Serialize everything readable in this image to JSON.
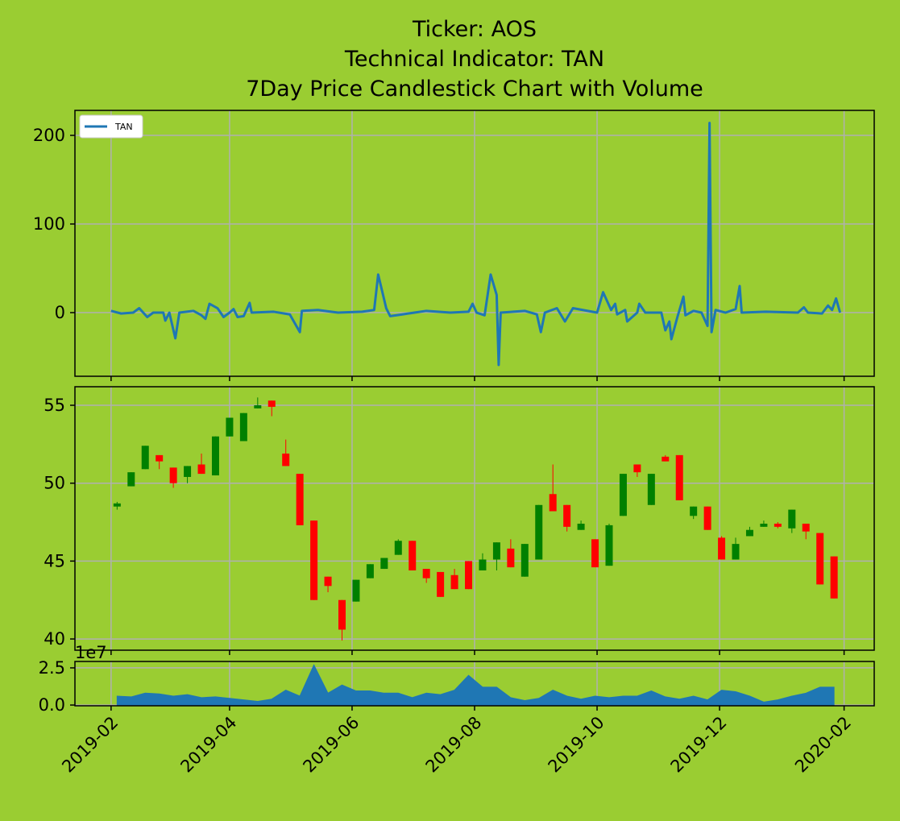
{
  "chart_data": [
    {
      "type": "line",
      "title": [
        "Ticker: AOS",
        "Technical Indicator: TAN",
        "7Day Price Candlestick Chart with Volume"
      ],
      "x": [
        "2019-02-01",
        "2019-02-06",
        "2019-02-12",
        "2019-02-15",
        "2019-02-19",
        "2019-02-22",
        "2019-02-27",
        "2019-02-28",
        "2019-03-02",
        "2019-03-05",
        "2019-03-07",
        "2019-03-14",
        "2019-03-18",
        "2019-03-20",
        "2019-03-22",
        "2019-03-26",
        "2019-03-29",
        "2019-04-01",
        "2019-04-03",
        "2019-04-05",
        "2019-04-08",
        "2019-04-11",
        "2019-04-12",
        "2019-04-23",
        "2019-05-01",
        "2019-05-06",
        "2019-05-07",
        "2019-05-15",
        "2019-05-25",
        "2019-06-06",
        "2019-06-12",
        "2019-06-14",
        "2019-06-18",
        "2019-06-20",
        "2019-06-26",
        "2019-07-08",
        "2019-07-20",
        "2019-07-29",
        "2019-07-31",
        "2019-08-02",
        "2019-08-06",
        "2019-08-09",
        "2019-08-12",
        "2019-08-13",
        "2019-08-14",
        "2019-08-26",
        "2019-09-01",
        "2019-09-03",
        "2019-09-05",
        "2019-09-11",
        "2019-09-15",
        "2019-09-19",
        "2019-10-01",
        "2019-10-04",
        "2019-10-08",
        "2019-10-10",
        "2019-10-11",
        "2019-10-15",
        "2019-10-16",
        "2019-10-21",
        "2019-10-22",
        "2019-10-25",
        "2019-11-02",
        "2019-11-04",
        "2019-11-06",
        "2019-11-07",
        "2019-11-10",
        "2019-11-13",
        "2019-11-14",
        "2019-11-18",
        "2019-11-22",
        "2019-11-25",
        "2019-11-26",
        "2019-11-27",
        "2019-11-29",
        "2019-12-04",
        "2019-12-09",
        "2019-12-11",
        "2019-12-12",
        "2019-12-24",
        "2020-01-09",
        "2020-01-12",
        "2020-01-14",
        "2020-01-21",
        "2020-01-24",
        "2020-01-26",
        "2020-01-28",
        "2020-01-30"
      ],
      "series": [
        {
          "name": "TAN",
          "color": "#1f77b4",
          "values": [
            2,
            -1,
            0,
            5,
            -5,
            0,
            0,
            -9,
            0,
            -29,
            0,
            2,
            -3,
            -7,
            10,
            5,
            -5,
            0,
            4,
            -5,
            -4,
            11,
            0,
            1,
            -2,
            -22,
            2,
            3,
            0,
            1,
            3,
            43,
            5,
            -4,
            -2,
            2,
            0,
            1,
            10,
            0,
            -3,
            43,
            20,
            -59,
            0,
            2,
            -2,
            -22,
            0,
            5,
            -10,
            5,
            0,
            23,
            3,
            10,
            -2,
            3,
            -10,
            0,
            10,
            0,
            0,
            -20,
            -10,
            -30,
            -5,
            18,
            -3,
            2,
            0,
            -15,
            214,
            -22,
            3,
            0,
            4,
            30,
            0,
            1,
            0,
            6,
            0,
            -1,
            8,
            3,
            16,
            0
          ]
        }
      ],
      "xlim": [
        "2019-01-14",
        "2020-02-16"
      ],
      "ylim": [
        -71.8,
        228.2
      ],
      "yticks": [
        0,
        100,
        200
      ],
      "grid": true,
      "legend": "upper left"
    },
    {
      "type": "candlestick",
      "x": [
        "2019-02-04",
        "2019-02-11",
        "2019-02-18",
        "2019-02-25",
        "2019-03-04",
        "2019-03-11",
        "2019-03-18",
        "2019-03-25",
        "2019-04-01",
        "2019-04-08",
        "2019-04-15",
        "2019-04-22",
        "2019-04-29",
        "2019-05-06",
        "2019-05-13",
        "2019-05-20",
        "2019-05-27",
        "2019-06-03",
        "2019-06-10",
        "2019-06-17",
        "2019-06-24",
        "2019-07-01",
        "2019-07-08",
        "2019-07-15",
        "2019-07-22",
        "2019-07-29",
        "2019-08-05",
        "2019-08-12",
        "2019-08-19",
        "2019-08-26",
        "2019-09-02",
        "2019-09-09",
        "2019-09-16",
        "2019-09-23",
        "2019-09-30",
        "2019-10-07",
        "2019-10-14",
        "2019-10-21",
        "2019-10-28",
        "2019-11-04",
        "2019-11-11",
        "2019-11-18",
        "2019-11-25",
        "2019-12-02",
        "2019-12-09",
        "2019-12-16",
        "2019-12-23",
        "2019-12-30",
        "2020-01-06",
        "2020-01-13",
        "2020-01-20",
        "2020-01-27"
      ],
      "open": [
        48.5,
        49.8,
        50.9,
        51.8,
        51.0,
        50.4,
        51.2,
        50.5,
        53.0,
        52.7,
        54.8,
        55.3,
        51.9,
        50.6,
        47.6,
        44.0,
        42.5,
        42.4,
        43.9,
        44.5,
        45.4,
        46.3,
        44.5,
        44.3,
        44.1,
        45.0,
        44.4,
        45.1,
        45.8,
        44.0,
        45.1,
        49.3,
        48.6,
        47.0,
        46.4,
        44.7,
        47.9,
        51.2,
        48.6,
        51.7,
        51.8,
        47.9,
        48.5,
        46.5,
        45.1,
        46.6,
        47.2,
        47.4,
        47.1,
        47.4,
        46.8,
        45.3
      ],
      "high": [
        48.8,
        50.7,
        52.4,
        51.8,
        51.0,
        51.1,
        51.9,
        53.0,
        54.2,
        54.5,
        55.5,
        55.3,
        52.8,
        50.6,
        47.6,
        44.0,
        42.5,
        43.8,
        44.8,
        45.2,
        46.4,
        46.3,
        44.5,
        44.3,
        44.5,
        45.0,
        45.5,
        46.2,
        46.4,
        46.1,
        48.6,
        51.2,
        48.6,
        47.6,
        46.4,
        47.4,
        50.6,
        51.2,
        50.6,
        51.8,
        51.8,
        48.5,
        48.5,
        46.6,
        46.5,
        47.2,
        47.6,
        47.5,
        48.3,
        47.4,
        46.8,
        45.3
      ],
      "low": [
        48.3,
        49.8,
        50.9,
        50.9,
        49.7,
        50.0,
        50.6,
        50.5,
        53.0,
        52.7,
        54.8,
        54.3,
        51.1,
        47.3,
        42.5,
        43.0,
        39.9,
        42.4,
        43.9,
        44.5,
        45.4,
        44.4,
        43.6,
        42.7,
        43.2,
        43.2,
        44.4,
        44.4,
        44.6,
        44.0,
        45.1,
        48.2,
        46.9,
        47.0,
        44.6,
        44.7,
        47.9,
        50.4,
        48.6,
        51.4,
        48.9,
        47.7,
        47.0,
        45.1,
        45.1,
        46.6,
        47.2,
        47.1,
        46.8,
        46.4,
        43.5,
        42.6
      ],
      "close": [
        48.7,
        50.7,
        52.4,
        51.4,
        50.0,
        51.1,
        50.6,
        53.0,
        54.2,
        54.5,
        55.0,
        54.9,
        51.1,
        47.3,
        42.5,
        43.4,
        40.6,
        43.8,
        44.8,
        45.2,
        46.3,
        44.4,
        43.9,
        42.7,
        43.2,
        43.2,
        45.1,
        46.2,
        44.6,
        46.1,
        48.6,
        48.2,
        47.2,
        47.4,
        44.6,
        47.3,
        50.6,
        50.7,
        50.6,
        51.4,
        48.9,
        48.5,
        47.0,
        45.1,
        46.1,
        47.0,
        47.4,
        47.2,
        48.3,
        46.9,
        43.5,
        42.6
      ],
      "up_color": "green",
      "down_color": "red",
      "xlim": [
        "2019-01-14",
        "2020-02-16"
      ],
      "ylim": [
        39.28,
        56.19
      ],
      "yticks": [
        40,
        45,
        50,
        55
      ],
      "grid": true
    },
    {
      "type": "area",
      "offset_label": "1e7",
      "x": [
        "2019-02-04",
        "2019-02-11",
        "2019-02-18",
        "2019-02-25",
        "2019-03-04",
        "2019-03-11",
        "2019-03-18",
        "2019-03-25",
        "2019-04-01",
        "2019-04-08",
        "2019-04-15",
        "2019-04-22",
        "2019-04-29",
        "2019-05-06",
        "2019-05-13",
        "2019-05-20",
        "2019-05-27",
        "2019-06-03",
        "2019-06-10",
        "2019-06-17",
        "2019-06-24",
        "2019-07-01",
        "2019-07-08",
        "2019-07-15",
        "2019-07-22",
        "2019-07-29",
        "2019-08-05",
        "2019-08-12",
        "2019-08-19",
        "2019-08-26",
        "2019-09-02",
        "2019-09-09",
        "2019-09-16",
        "2019-09-23",
        "2019-09-30",
        "2019-10-07",
        "2019-10-14",
        "2019-10-21",
        "2019-10-28",
        "2019-11-04",
        "2019-11-11",
        "2019-11-18",
        "2019-11-25",
        "2019-12-02",
        "2019-12-09",
        "2019-12-16",
        "2019-12-23",
        "2019-12-30",
        "2020-01-06",
        "2020-01-13",
        "2020-01-20",
        "2020-01-27"
      ],
      "values": [
        0.6,
        0.55,
        0.8,
        0.75,
        0.6,
        0.7,
        0.5,
        0.55,
        0.45,
        0.35,
        0.25,
        0.4,
        1.0,
        0.6,
        2.7,
        0.8,
        1.35,
        0.95,
        0.95,
        0.8,
        0.8,
        0.5,
        0.8,
        0.7,
        1.0,
        2.0,
        1.2,
        1.2,
        0.5,
        0.3,
        0.45,
        1.0,
        0.6,
        0.4,
        0.6,
        0.5,
        0.6,
        0.6,
        0.95,
        0.55,
        0.4,
        0.6,
        0.35,
        1.0,
        0.9,
        0.6,
        0.2,
        0.35,
        0.6,
        0.8,
        1.2,
        1.2
      ],
      "color": "#1f77b4",
      "xlim": [
        "2019-01-14",
        "2020-02-16"
      ],
      "xticks": [
        {
          "value": "2019-02-01",
          "label": "2019-02"
        },
        {
          "value": "2019-04-01",
          "label": "2019-04"
        },
        {
          "value": "2019-06-01",
          "label": "2019-06"
        },
        {
          "value": "2019-08-01",
          "label": "2019-08"
        },
        {
          "value": "2019-10-01",
          "label": "2019-10"
        },
        {
          "value": "2019-12-01",
          "label": "2019-12"
        },
        {
          "value": "2020-02-01",
          "label": "2020-02"
        }
      ],
      "ylim": [
        -0.05,
        2.93
      ],
      "yticks": [
        {
          "value": 0,
          "label": "0.0"
        },
        2.5
      ],
      "grid": true
    }
  ]
}
